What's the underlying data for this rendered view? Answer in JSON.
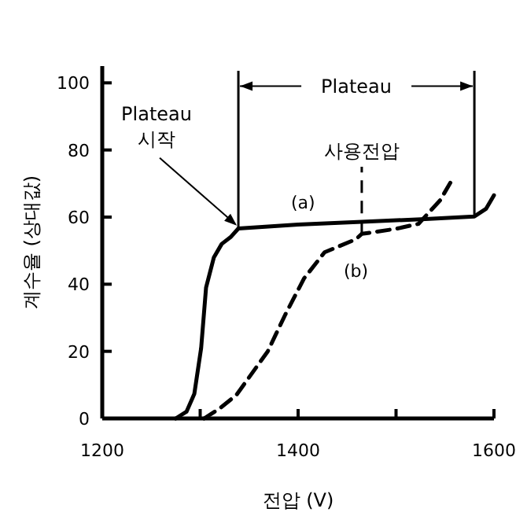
{
  "chart_data": {
    "type": "line",
    "xlabel": "전압 (V)",
    "ylabel": "계수율 (상대값)",
    "xlim": [
      1200,
      1600
    ],
    "ylim": [
      0,
      105
    ],
    "xticks": [
      1200,
      {
        "value": 1300,
        "label": null
      },
      1400,
      {
        "value": 1500,
        "label": null
      },
      1600
    ],
    "yticks": [
      0,
      20,
      40,
      60,
      80,
      100
    ],
    "grid": false,
    "legend": false,
    "marker": "none",
    "series": [
      {
        "name": "(a)",
        "color": "#000000",
        "line_style": "solid",
        "x": [
          1275,
          1286,
          1294,
          1301,
          1306,
          1314,
          1322,
          1331,
          1339,
          1400,
          1465,
          1530,
          1580,
          1592,
          1600
        ],
        "values": [
          0,
          2,
          7.3,
          21,
          39,
          48,
          52,
          54,
          56.6,
          57.8,
          58.6,
          59.4,
          60.2,
          62.5,
          66.5
        ]
      },
      {
        "name": "(b)",
        "color": "#000000",
        "line_style": "dashed",
        "x": [
          1304,
          1320,
          1337,
          1369,
          1387,
          1406,
          1427,
          1459,
          1465,
          1500,
          1523,
          1545,
          1559
        ],
        "values": [
          0,
          3,
          7,
          20,
          31,
          41.7,
          49.5,
          53.4,
          55,
          56.5,
          58,
          65,
          72
        ]
      }
    ],
    "ref_lines": [
      {
        "axis": "x",
        "value": 1339,
        "line_style": "solid"
      },
      {
        "axis": "x",
        "value": 1580,
        "line_style": "solid"
      },
      {
        "axis": "x",
        "value": 1465,
        "label": "사용전압",
        "line_style": "dashed"
      }
    ],
    "annotations": [
      {
        "text": "Plateau",
        "x": 1580,
        "y": 99
      },
      {
        "text": "Plateau 시작",
        "x": 1339,
        "y": 57
      }
    ]
  }
}
